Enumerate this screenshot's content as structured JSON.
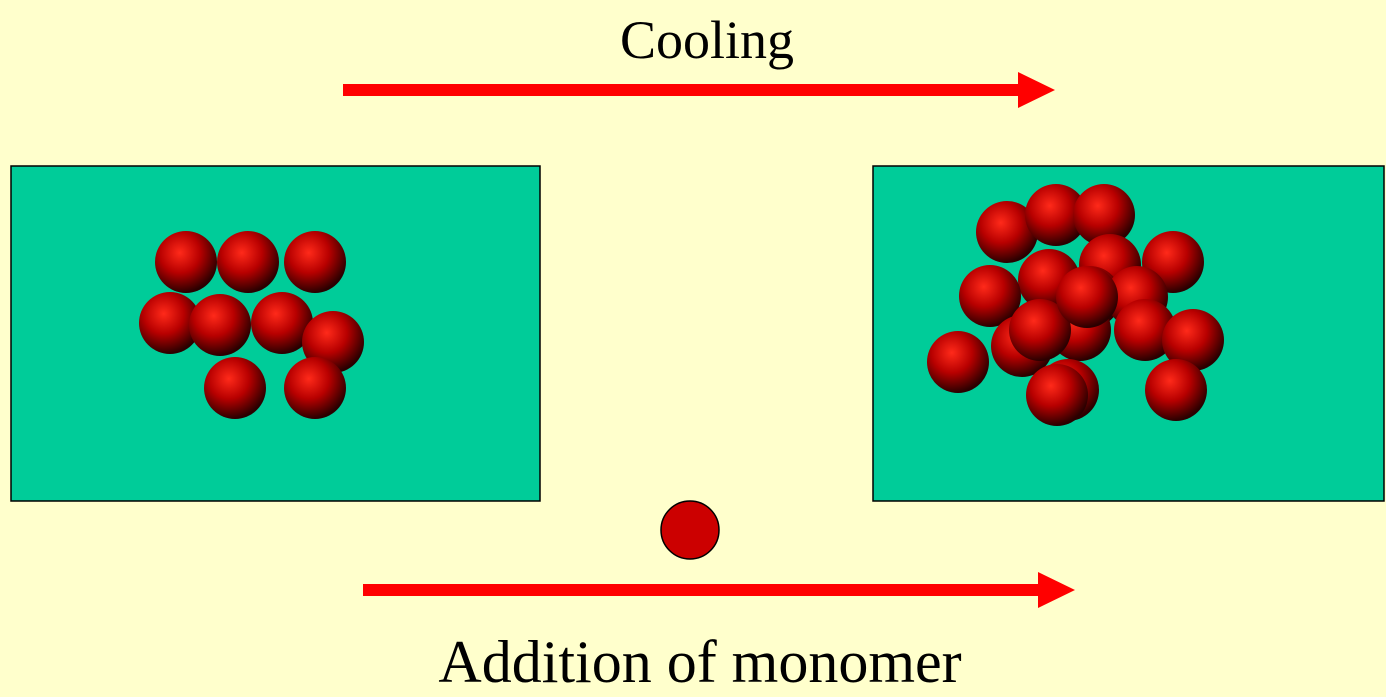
{
  "arrows": [
    {
      "label": "Cooling"
    },
    {
      "label": "Addition of monomer"
    }
  ]
}
